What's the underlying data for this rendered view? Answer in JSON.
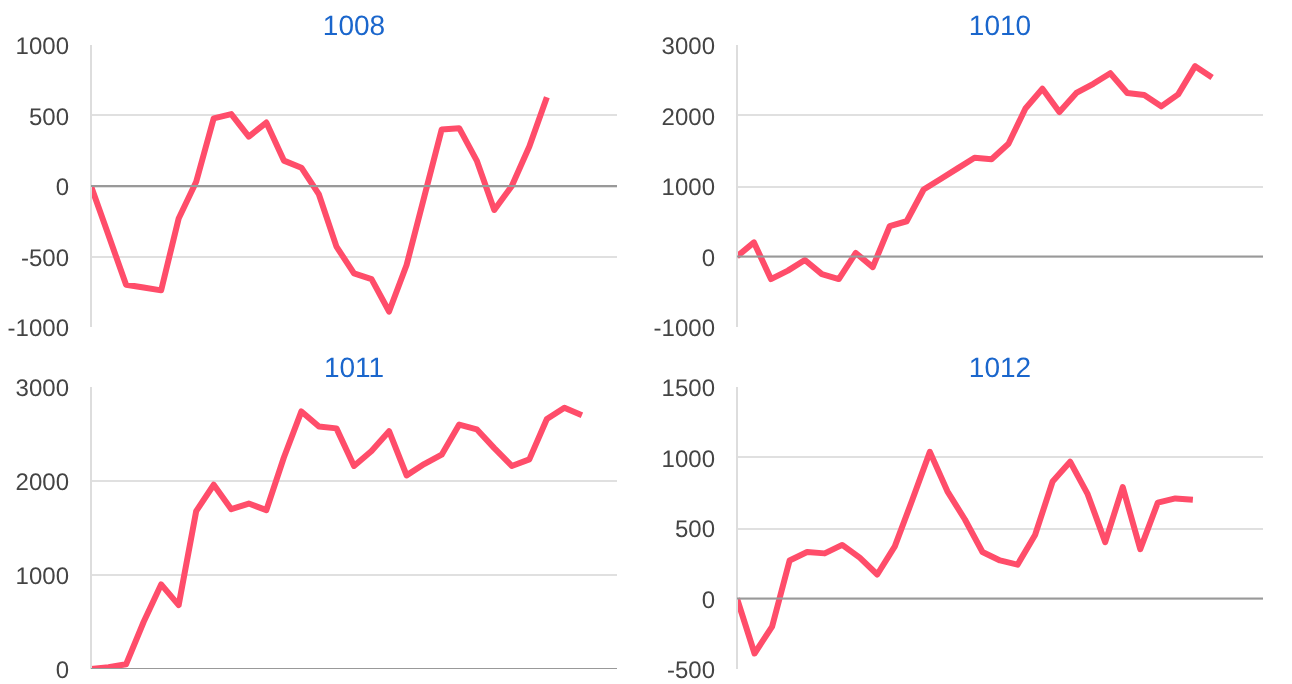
{
  "chart_data": [
    {
      "type": "line",
      "title": "1008",
      "categories": [
        null,
        null,
        null,
        null,
        null,
        null,
        null,
        null,
        null,
        null,
        null,
        null,
        null,
        null,
        null,
        null,
        null,
        null,
        null,
        null,
        null,
        null,
        null,
        null,
        null,
        null,
        null,
        null,
        null,
        null,
        null
      ],
      "series": [
        {
          "color": "#ff4d6a",
          "values": [
            0,
            -350,
            -700,
            -720,
            -740,
            -230,
            30,
            480,
            510,
            350,
            450,
            180,
            130,
            -60,
            -430,
            -620,
            -660,
            -890,
            -560,
            -80,
            400,
            410,
            180,
            -170,
            0,
            280,
            630,
            null,
            null,
            null,
            null
          ]
        }
      ],
      "ylim": [
        -1000,
        1000
      ],
      "yticks": [
        -1000,
        -500,
        0,
        500,
        1000
      ],
      "grid": "y",
      "tick_labels": "y",
      "ref_lines": [
        {
          "axis": "y",
          "value": 0,
          "color": "#999999"
        }
      ]
    },
    {
      "type": "line",
      "title": "1010",
      "categories": [
        null,
        null,
        null,
        null,
        null,
        null,
        null,
        null,
        null,
        null,
        null,
        null,
        null,
        null,
        null,
        null,
        null,
        null,
        null,
        null,
        null,
        null,
        null,
        null,
        null,
        null,
        null,
        null,
        null,
        null,
        null,
        null
      ],
      "series": [
        {
          "color": "#ff4d6a",
          "values": [
            0,
            200,
            -320,
            -200,
            -50,
            -250,
            -320,
            50,
            -150,
            430,
            500,
            950,
            1100,
            1250,
            1400,
            1380,
            1600,
            2100,
            2380,
            2050,
            2320,
            2450,
            2600,
            2320,
            2290,
            2130,
            2300,
            2700,
            2540,
            null,
            null,
            null
          ]
        }
      ],
      "ylim": [
        -1000,
        3000
      ],
      "yticks": [
        -1000,
        0,
        1000,
        2000,
        3000
      ],
      "grid": "y",
      "tick_labels": "y",
      "ref_lines": [
        {
          "axis": "y",
          "value": 0,
          "color": "#999999"
        }
      ]
    },
    {
      "type": "line",
      "title": "1011",
      "categories": [
        null,
        null,
        null,
        null,
        null,
        null,
        null,
        null,
        null,
        null,
        null,
        null,
        null,
        null,
        null,
        null,
        null,
        null,
        null,
        null,
        null,
        null,
        null,
        null,
        null,
        null,
        null,
        null,
        null,
        null,
        null
      ],
      "series": [
        {
          "color": "#ff4d6a",
          "values": [
            0,
            20,
            50,
            500,
            900,
            680,
            1680,
            1960,
            1700,
            1760,
            1690,
            2250,
            2740,
            2580,
            2560,
            2160,
            2320,
            2530,
            2060,
            2180,
            2280,
            2600,
            2550,
            2350,
            2160,
            2230,
            2660,
            2780,
            2700,
            null,
            null
          ]
        }
      ],
      "ylim": [
        0,
        3000
      ],
      "yticks": [
        0,
        1000,
        2000,
        3000
      ],
      "grid": "y",
      "tick_labels": "y",
      "ref_lines": [
        {
          "axis": "y",
          "value": 0,
          "color": "#999999"
        }
      ]
    },
    {
      "type": "line",
      "title": "1012",
      "categories": [
        null,
        null,
        null,
        null,
        null,
        null,
        null,
        null,
        null,
        null,
        null,
        null,
        null,
        null,
        null,
        null,
        null,
        null,
        null,
        null,
        null,
        null,
        null,
        null,
        null,
        null,
        null,
        null,
        null,
        null,
        null
      ],
      "series": [
        {
          "color": "#ff4d6a",
          "values": [
            0,
            -390,
            -200,
            270,
            330,
            320,
            380,
            290,
            170,
            370,
            700,
            1040,
            760,
            560,
            330,
            270,
            240,
            450,
            830,
            970,
            740,
            400,
            790,
            350,
            680,
            710,
            700,
            null,
            null,
            null,
            null
          ]
        }
      ],
      "ylim": [
        -500,
        1500
      ],
      "yticks": [
        -500,
        0,
        500,
        1000,
        1500
      ],
      "grid": "y",
      "tick_labels": "y",
      "ref_lines": [
        {
          "axis": "y",
          "value": 0,
          "color": "#999999"
        }
      ]
    }
  ]
}
